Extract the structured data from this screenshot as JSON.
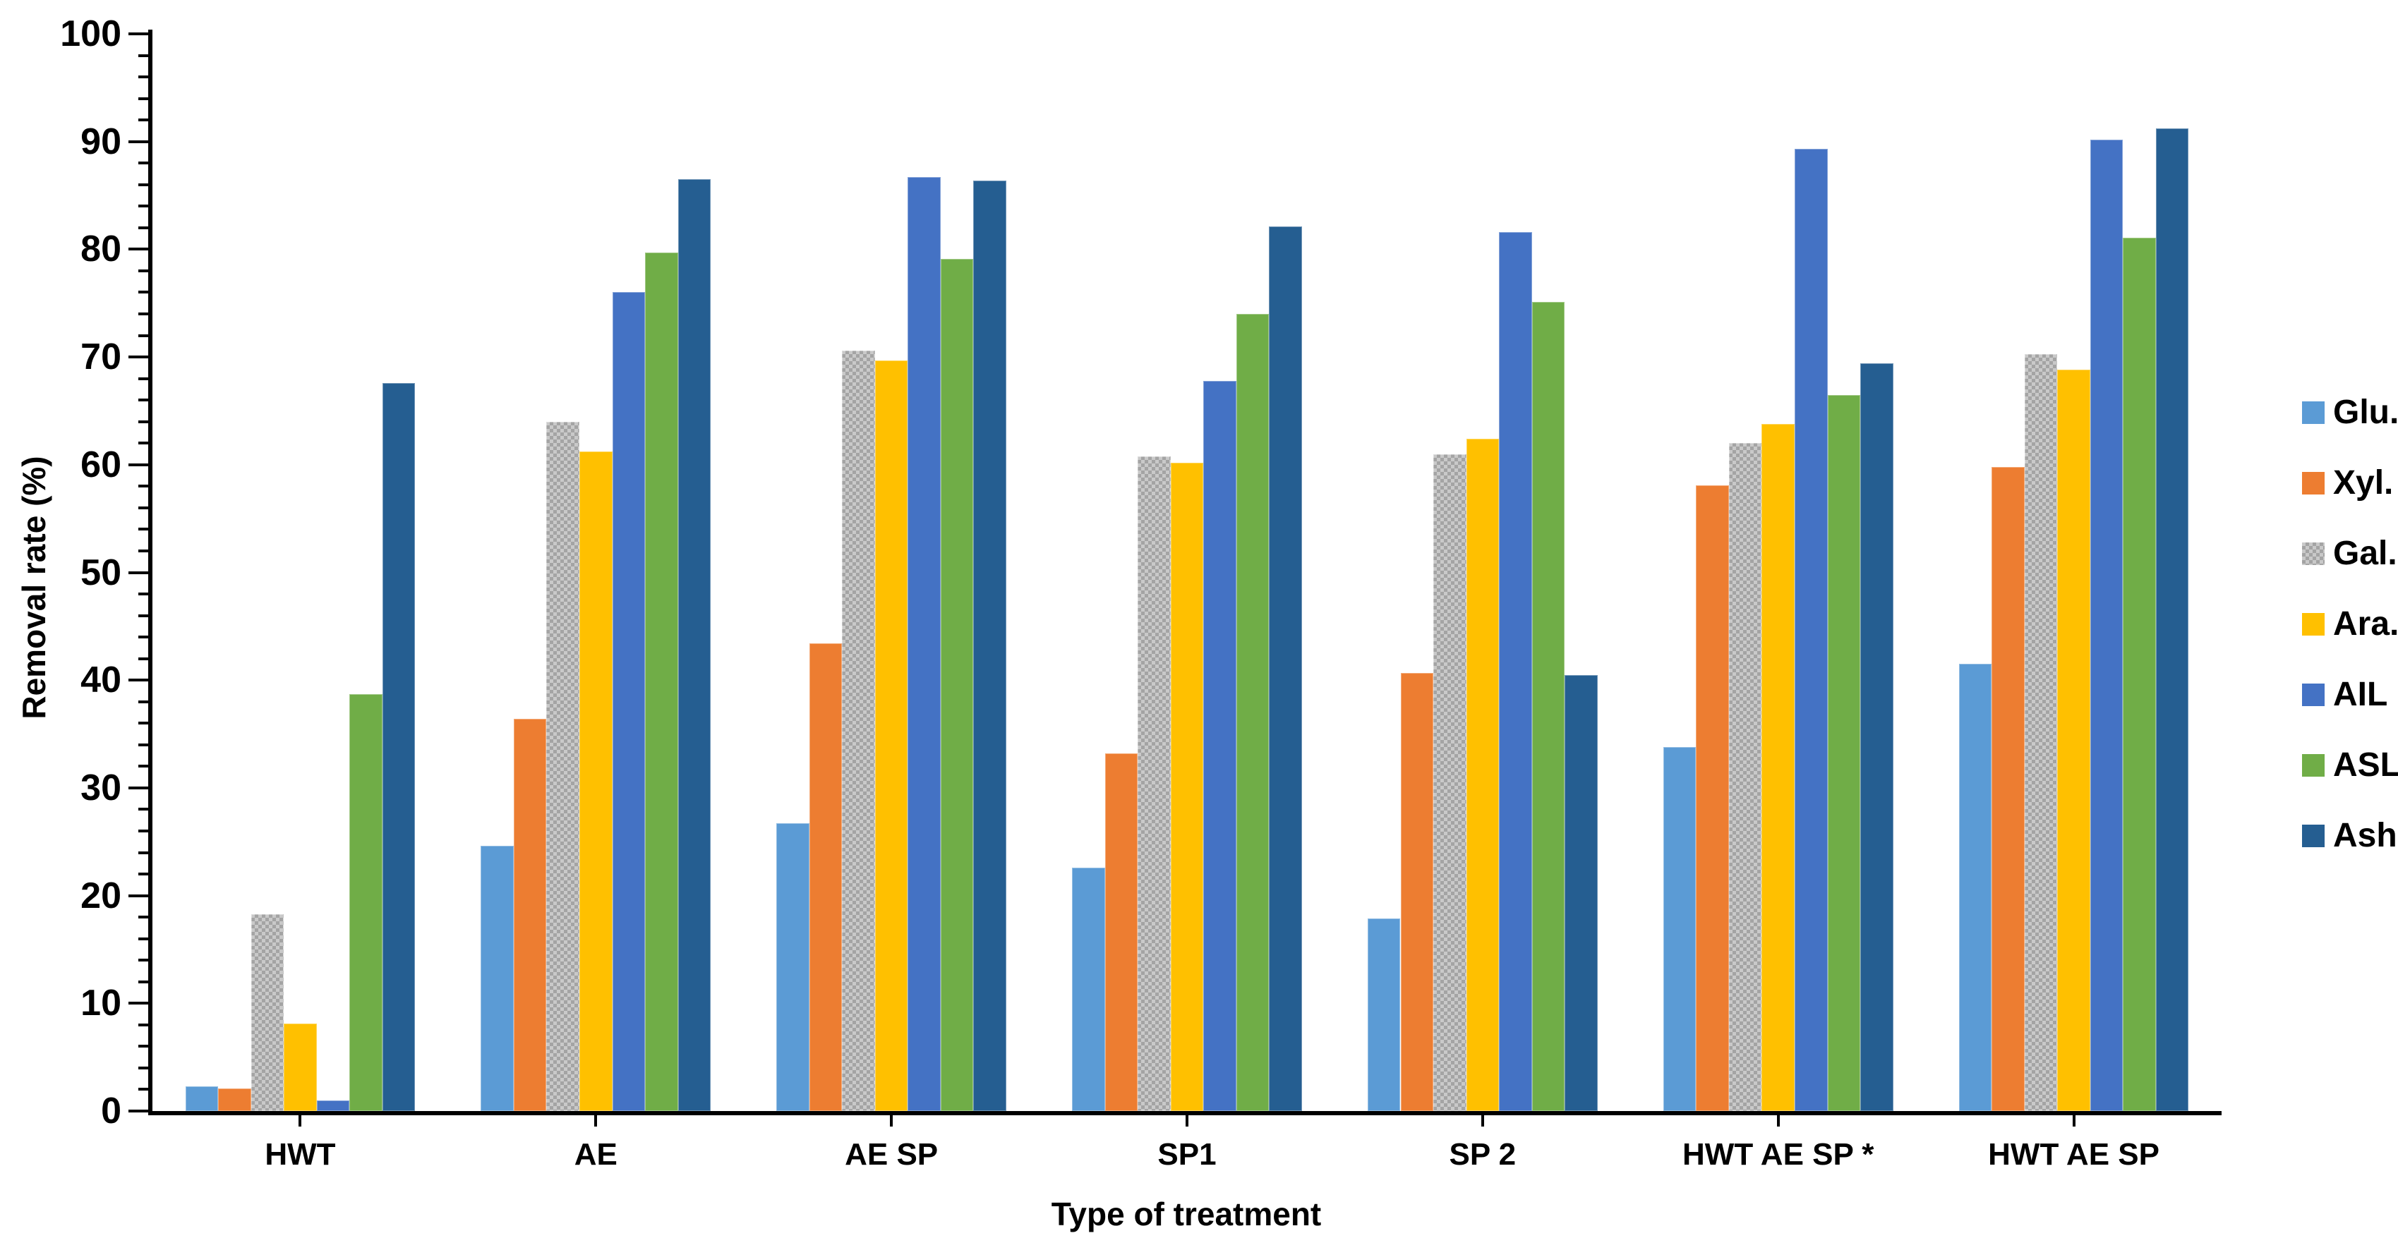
{
  "chart_data": {
    "type": "bar",
    "title": "",
    "xlabel": "Type of treatment",
    "ylabel": "Removal rate (%)",
    "ylim": [
      0,
      100
    ],
    "y_major_step": 10,
    "y_minor_step": 2,
    "y_tick_labels": [
      "0",
      "10",
      "20",
      "30",
      "40",
      "50",
      "60",
      "70",
      "80",
      "90",
      "100"
    ],
    "grid": "off",
    "legend_position": "right",
    "categories": [
      "HWT",
      "AE",
      "AE SP",
      "SP1",
      "SP 2",
      "HWT AE SP *",
      "HWT AE SP"
    ],
    "series": [
      {
        "name": "Glu.",
        "color": "#5B9BD5",
        "pattern": "solid",
        "values": [
          2.3,
          24.6,
          26.7,
          22.6,
          17.9,
          33.8,
          41.5
        ]
      },
      {
        "name": "Xyl.",
        "color": "#ED7D31",
        "pattern": "solid",
        "values": [
          2.1,
          36.4,
          43.4,
          33.2,
          40.7,
          58.1,
          59.8
        ]
      },
      {
        "name": "Gal.",
        "color": "#ABABAB",
        "pattern": "checker",
        "values": [
          18.3,
          64.0,
          70.6,
          60.8,
          61.0,
          62.0,
          70.3
        ]
      },
      {
        "name": "Ara.",
        "color": "#FFC000",
        "pattern": "solid",
        "values": [
          8.1,
          61.2,
          69.7,
          60.2,
          62.4,
          63.8,
          68.8
        ]
      },
      {
        "name": "AIL",
        "color": "#4472C4",
        "pattern": "solid",
        "values": [
          1.0,
          76.0,
          86.7,
          67.8,
          81.6,
          89.3,
          90.2
        ]
      },
      {
        "name": "ASL",
        "color": "#70AD47",
        "pattern": "solid",
        "values": [
          38.7,
          79.7,
          79.1,
          74.0,
          75.1,
          66.5,
          81.1
        ]
      },
      {
        "name": "Ash",
        "color": "#255E91",
        "pattern": "solid",
        "values": [
          67.6,
          86.5,
          86.4,
          82.1,
          40.5,
          69.4,
          91.2
        ]
      }
    ]
  }
}
